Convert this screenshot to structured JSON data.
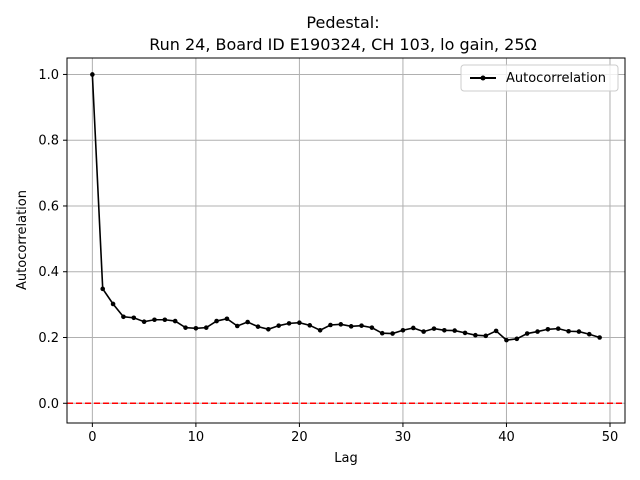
{
  "chart_data": {
    "type": "line",
    "title_line1": "Pedestal:",
    "title_line2": "Run 24, Board ID E190324, CH 103, lo gain, 25Ω",
    "xlabel": "Lag",
    "ylabel": "Autocorrelation",
    "xlim": [
      -2.45,
      51.45
    ],
    "ylim": [
      -0.06,
      1.05
    ],
    "xticks": [
      0,
      10,
      20,
      30,
      40,
      50
    ],
    "yticks": [
      0.0,
      0.2,
      0.4,
      0.6,
      0.8,
      1.0
    ],
    "xtick_labels": [
      "0",
      "10",
      "20",
      "30",
      "40",
      "50"
    ],
    "ytick_labels": [
      "0.0",
      "0.2",
      "0.4",
      "0.6",
      "0.8",
      "1.0"
    ],
    "grid": true,
    "legend_position": "top-right",
    "series": [
      {
        "name": "Autocorrelation",
        "color": "#000000",
        "marker": "circle",
        "x": [
          0,
          1,
          2,
          3,
          4,
          5,
          6,
          7,
          8,
          9,
          10,
          11,
          12,
          13,
          14,
          15,
          16,
          17,
          18,
          19,
          20,
          21,
          22,
          23,
          24,
          25,
          26,
          27,
          28,
          29,
          30,
          31,
          32,
          33,
          34,
          35,
          36,
          37,
          38,
          39,
          40,
          41,
          42,
          43,
          44,
          45,
          46,
          47,
          48,
          49
        ],
        "y": [
          1.0,
          0.348,
          0.302,
          0.263,
          0.26,
          0.248,
          0.254,
          0.254,
          0.25,
          0.23,
          0.228,
          0.23,
          0.25,
          0.257,
          0.235,
          0.247,
          0.233,
          0.225,
          0.236,
          0.243,
          0.245,
          0.237,
          0.222,
          0.238,
          0.24,
          0.234,
          0.236,
          0.23,
          0.213,
          0.212,
          0.222,
          0.229,
          0.218,
          0.227,
          0.222,
          0.221,
          0.214,
          0.207,
          0.205,
          0.22,
          0.192,
          0.196,
          0.212,
          0.218,
          0.225,
          0.227,
          0.219,
          0.218,
          0.21,
          0.2
        ]
      }
    ],
    "reference_line": {
      "y": 0.0,
      "color": "#ff0000",
      "style": "dashed"
    }
  }
}
